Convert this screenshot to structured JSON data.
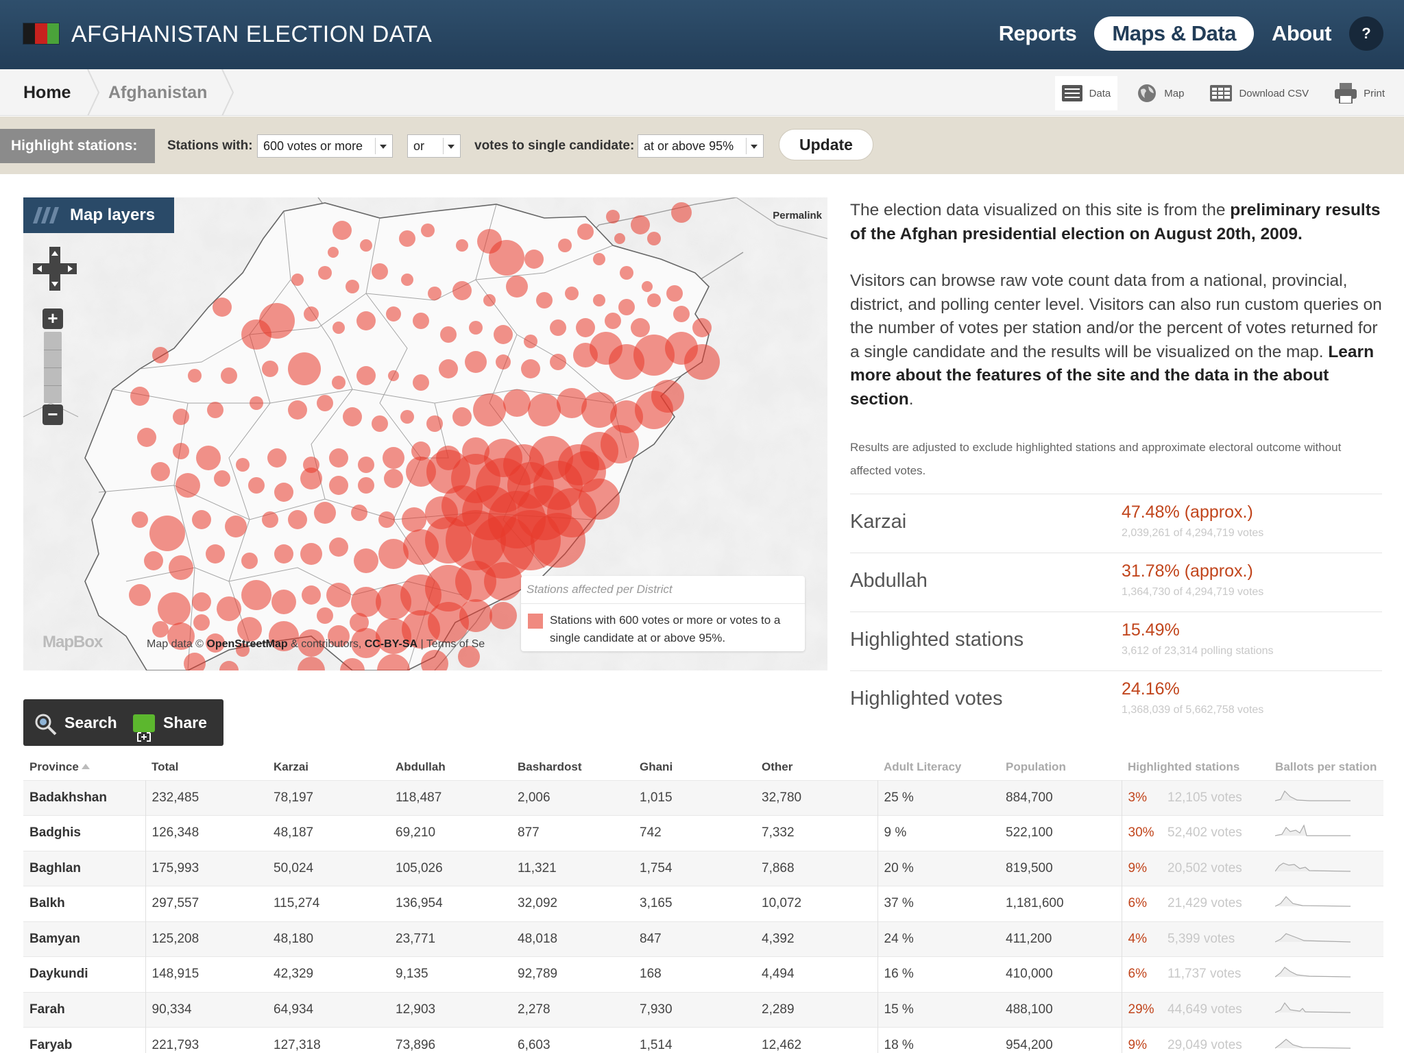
{
  "header": {
    "site_title": "AFGHANISTAN ELECTION DATA",
    "flag_colors": [
      "#1a1a1a",
      "#c8221e",
      "#4aa33a"
    ],
    "nav": [
      {
        "label": "Reports",
        "active": false
      },
      {
        "label": "Maps & Data",
        "active": true
      },
      {
        "label": "About",
        "active": false
      }
    ],
    "help_label": "?"
  },
  "breadcrumb": {
    "items": [
      "Home",
      "Afghanistan"
    ]
  },
  "tools": {
    "data_label": "Data",
    "map_label": "Map",
    "download_label": "Download CSV",
    "print_label": "Print"
  },
  "highlight": {
    "label": "Highlight stations:",
    "stations_with_label": "Stations with:",
    "votes_select": "600 votes or more",
    "logic_select": "or",
    "single_label": "votes to single candidate:",
    "threshold_select": "at or above 95%",
    "update_label": "Update"
  },
  "map": {
    "layers_label": "Map layers",
    "permalink_label": "Permalink",
    "zoom_in": "+",
    "zoom_out": "−",
    "legend_title": "Stations affected per District",
    "legend_text": "Stations with 600 votes or more or votes to a single candidate at or above 95%.",
    "mapbox_label": "MapBox",
    "attribution": {
      "prefix": "Map data ©",
      "osm": "OpenStreetMap",
      "middle": "& contributors,",
      "license": "CC-BY-SA",
      "terms": "| Terms of Se"
    },
    "marker_color": "#e8392a"
  },
  "intro": {
    "p1_a": "The election data visualized on this site is from the ",
    "p1_b": "preliminary results of the Afghan presidential election on August 20th, 2009.",
    "p2_a": "Visitors can browse raw vote count data from a national, provincial, district, and polling center level. Visitors can also run custom queries on the number of votes per station and/or the percent of votes returned for a single candidate and the results will be visualized on the map. ",
    "p2_b": "Learn more about the features of the site and the data in the about section",
    "p2_c": ".",
    "note": "Results are adjusted to exclude highlighted stations and approximate electoral outcome without affected votes."
  },
  "stats": [
    {
      "name": "Karzai",
      "pct": "47.48% (approx.)",
      "sub": "2,039,261 of 4,294,719 votes"
    },
    {
      "name": "Abdullah",
      "pct": "31.78% (approx.)",
      "sub": "1,364,730 of 4,294,719 votes"
    },
    {
      "name": "Highlighted stations",
      "pct": "15.49%",
      "sub": "3,612 of 23,314 polling stations"
    },
    {
      "name": "Highlighted votes",
      "pct": "24.16%",
      "sub": "1,368,039 of 5,662,758 votes"
    }
  ],
  "actions": {
    "search_label": "Search",
    "share_label": "Share"
  },
  "table": {
    "headers": [
      "Province",
      "Total",
      "Karzai",
      "Abdullah",
      "Bashardost",
      "Ghani",
      "Other",
      "Adult Literacy",
      "Population",
      "Highlighted stations",
      "Ballots per station"
    ],
    "rows": [
      {
        "province": "Badakhshan",
        "total": "232,485",
        "karzai": "78,197",
        "abdullah": "118,487",
        "bashardost": "2,006",
        "ghani": "1,015",
        "other": "32,780",
        "literacy": "25 %",
        "population": "884,700",
        "hl_pct": "3%",
        "hl_votes": "12,105 votes"
      },
      {
        "province": "Badghis",
        "total": "126,348",
        "karzai": "48,187",
        "abdullah": "69,210",
        "bashardost": "877",
        "ghani": "742",
        "other": "7,332",
        "literacy": "9 %",
        "population": "522,100",
        "hl_pct": "30%",
        "hl_votes": "52,402 votes"
      },
      {
        "province": "Baghlan",
        "total": "175,993",
        "karzai": "50,024",
        "abdullah": "105,026",
        "bashardost": "11,321",
        "ghani": "1,754",
        "other": "7,868",
        "literacy": "20 %",
        "population": "819,500",
        "hl_pct": "9%",
        "hl_votes": "20,502 votes"
      },
      {
        "province": "Balkh",
        "total": "297,557",
        "karzai": "115,274",
        "abdullah": "136,954",
        "bashardost": "32,092",
        "ghani": "3,165",
        "other": "10,072",
        "literacy": "37 %",
        "population": "1,181,600",
        "hl_pct": "6%",
        "hl_votes": "21,429 votes"
      },
      {
        "province": "Bamyan",
        "total": "125,208",
        "karzai": "48,180",
        "abdullah": "23,771",
        "bashardost": "48,018",
        "ghani": "847",
        "other": "4,392",
        "literacy": "24 %",
        "population": "411,200",
        "hl_pct": "4%",
        "hl_votes": "5,399 votes"
      },
      {
        "province": "Daykundi",
        "total": "148,915",
        "karzai": "42,329",
        "abdullah": "9,135",
        "bashardost": "92,789",
        "ghani": "168",
        "other": "4,494",
        "literacy": "16 %",
        "population": "410,000",
        "hl_pct": "6%",
        "hl_votes": "11,737 votes"
      },
      {
        "province": "Farah",
        "total": "90,334",
        "karzai": "64,934",
        "abdullah": "12,903",
        "bashardost": "2,278",
        "ghani": "7,930",
        "other": "2,289",
        "literacy": "15 %",
        "population": "488,100",
        "hl_pct": "29%",
        "hl_votes": "44,649 votes"
      },
      {
        "province": "Faryab",
        "total": "221,793",
        "karzai": "127,318",
        "abdullah": "73,896",
        "bashardost": "6,603",
        "ghani": "1,514",
        "other": "12,462",
        "literacy": "18 %",
        "population": "954,200",
        "hl_pct": "9%",
        "hl_votes": "29,049 votes"
      }
    ]
  }
}
